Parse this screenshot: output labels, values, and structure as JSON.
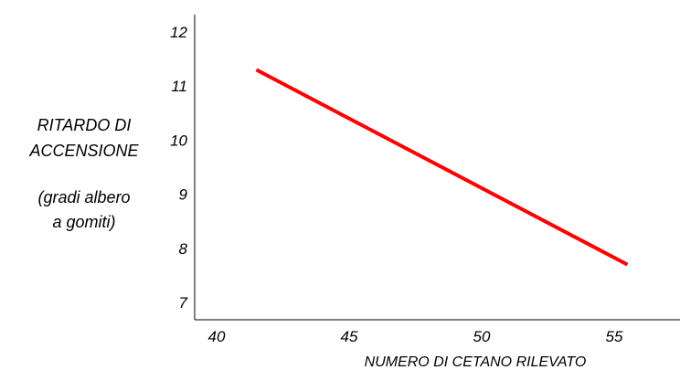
{
  "chart_data": {
    "type": "line",
    "title": "",
    "xlabel": "NUMERO DI CETANO RILEVATO",
    "ylabel_lines": [
      "RITARDO DI",
      "ACCENSIONE",
      "(gradi albero",
      "a gomiti)"
    ],
    "xlim": [
      40,
      58
    ],
    "ylim": [
      7,
      12
    ],
    "x_ticks": [
      40,
      45,
      50,
      55
    ],
    "y_ticks": [
      7,
      8,
      9,
      10,
      11,
      12
    ],
    "grid": false,
    "series": [
      {
        "color": "#ff0000",
        "x": [
          41.5,
          55.5
        ],
        "y": [
          11.3,
          7.7
        ]
      }
    ]
  }
}
